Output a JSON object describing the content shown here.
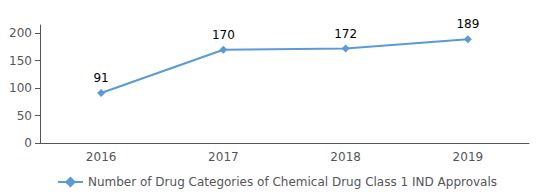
{
  "chart_data": {
    "type": "line",
    "categories": [
      "2016",
      "2017",
      "2018",
      "2019"
    ],
    "series": [
      {
        "name": "Number of Drug Categories of Chemical Drug Class 1 IND Approvals",
        "color": "#5B9BD5",
        "marker": "diamond",
        "values": [
          91,
          170,
          172,
          189
        ]
      }
    ],
    "ylim": [
      0,
      215
    ],
    "yticks": [
      0,
      50,
      100,
      150,
      200
    ],
    "data_labels": true,
    "grid": false,
    "legend": "bottom"
  }
}
